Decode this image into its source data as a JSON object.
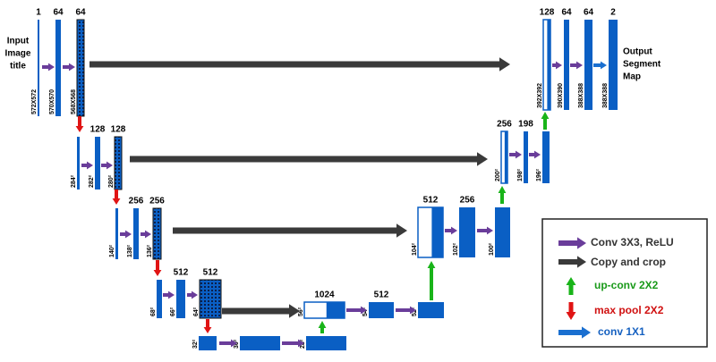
{
  "input_label": [
    "Input",
    "Image",
    "title"
  ],
  "output_label": [
    "Output",
    "Segment",
    "Map"
  ],
  "blocks": [
    {
      "channels": "1",
      "size": "572X572"
    },
    {
      "channels": "64",
      "size": "570X570"
    },
    {
      "channels": "64",
      "size": "568X568"
    },
    {
      "size": "284²"
    },
    {
      "channels": "128",
      "size": "282²"
    },
    {
      "channels": "128",
      "size": "280²"
    },
    {
      "size": "140²"
    },
    {
      "channels": "256",
      "size": "138²"
    },
    {
      "channels": "256",
      "size": "136²"
    },
    {
      "size": "68²"
    },
    {
      "channels": "512",
      "size": "66²"
    },
    {
      "channels": "512",
      "size": "64²"
    },
    {
      "size": "32²"
    },
    {
      "size": "30²"
    },
    {
      "size": "28²"
    },
    {
      "channels": "1024",
      "size": "56²"
    },
    {
      "channels": "512",
      "size": "54²"
    },
    {
      "size": "52²"
    },
    {
      "channels": "512",
      "size": "104²"
    },
    {
      "channels": "256",
      "size": "102²"
    },
    {
      "size": "100²"
    },
    {
      "channels": "256",
      "size": "200²"
    },
    {
      "channels": "198",
      "size": "198²"
    },
    {
      "size": "196²"
    },
    {
      "channels": "128",
      "size": "392X392"
    },
    {
      "channels": "64",
      "size": "390X390"
    },
    {
      "channels": "64",
      "size": "388X388"
    },
    {
      "channels": "2",
      "size": "388X388"
    }
  ],
  "legend": [
    "Conv 3X3, ReLU",
    "Copy and crop",
    "up-conv 2X2",
    "max pool 2X2",
    "conv 1X1"
  ]
}
